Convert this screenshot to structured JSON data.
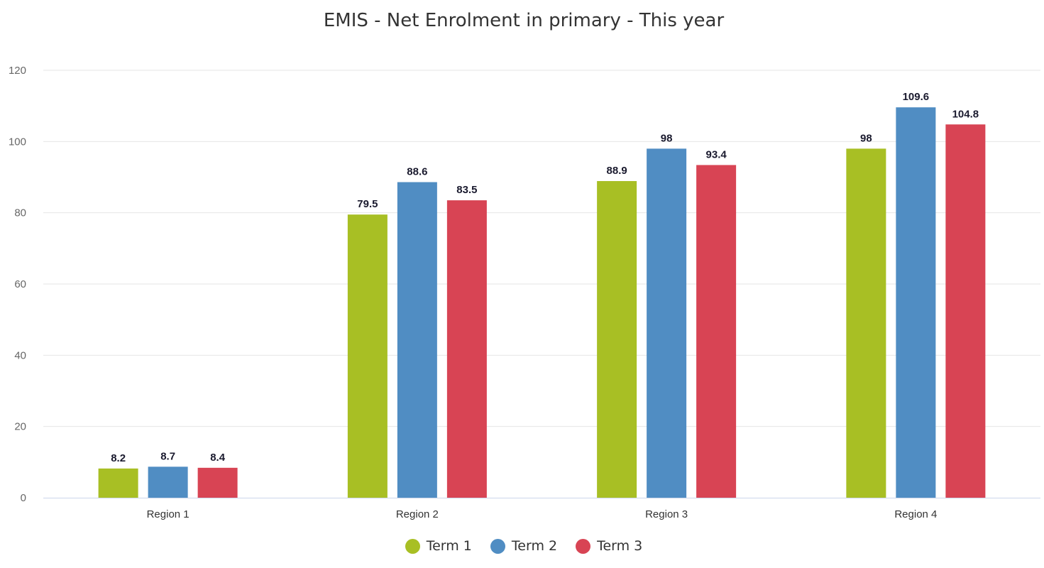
{
  "chart_data": {
    "type": "bar",
    "title": "EMIS - Net Enrolment in primary - This year",
    "categories": [
      "Region 1",
      "Region 2",
      "Region 3",
      "Region 4"
    ],
    "series": [
      {
        "name": "Term 1",
        "color": "#a8bf24",
        "values": [
          8.2,
          79.5,
          88.9,
          98
        ]
      },
      {
        "name": "Term 2",
        "color": "#508dc3",
        "values": [
          8.7,
          88.6,
          98,
          109.6
        ]
      },
      {
        "name": "Term 3",
        "color": "#d84454",
        "values": [
          8.4,
          83.5,
          93.4,
          104.8
        ]
      }
    ],
    "yticks": [
      0,
      20,
      40,
      60,
      80,
      100,
      120
    ],
    "ylim": [
      0,
      120
    ],
    "grid": true,
    "legend_position": "bottom-center",
    "data_labels": true
  }
}
